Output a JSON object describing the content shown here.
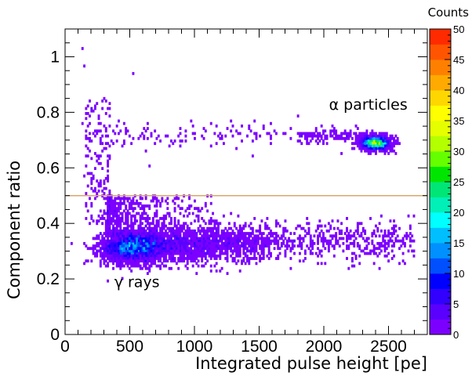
{
  "chart_data": {
    "type": "heatmap",
    "title": "",
    "xlabel": "Integrated pulse height [pe]",
    "ylabel": "Component ratio",
    "zlabel": "Counts",
    "xlim": [
      0,
      2800
    ],
    "ylim": [
      0,
      1.1
    ],
    "zlim": [
      0,
      50
    ],
    "x_ticks": [
      0,
      500,
      1000,
      1500,
      2000,
      2500
    ],
    "x_tick_labels": [
      "0",
      "500",
      "1000",
      "1500",
      "2000",
      "2500"
    ],
    "y_ticks": [
      0,
      0.2,
      0.4,
      0.6,
      0.8,
      1.0
    ],
    "y_tick_labels": [
      "0",
      "0.2",
      "0.4",
      "0.6",
      "0.8",
      "1"
    ],
    "z_ticks": [
      0,
      5,
      10,
      15,
      20,
      25,
      30,
      35,
      40,
      45,
      50
    ],
    "z_tick_labels": [
      "0",
      "5",
      "10",
      "15",
      "20",
      "25",
      "30",
      "35",
      "40",
      "45",
      "50"
    ],
    "cut_line": {
      "y": 0.5,
      "color": "#d9a66b"
    },
    "annotations": [
      {
        "text": "α particles",
        "x": 2040,
        "y": 0.81
      },
      {
        "text": "γ rays",
        "x": 380,
        "y": 0.17
      }
    ],
    "clusters": [
      {
        "name": "gamma-rays",
        "x_center": 500,
        "y_center": 0.315,
        "x_range": [
          300,
          2700
        ],
        "y_range": [
          0.24,
          0.5
        ],
        "peak_counts": 18
      },
      {
        "name": "alpha-particles",
        "x_center": 2400,
        "y_center": 0.69,
        "x_range": [
          2250,
          2600
        ],
        "y_range": [
          0.65,
          0.73
        ],
        "peak_counts": 35
      }
    ],
    "palette": [
      "#7c00ff",
      "#5a00ff",
      "#3200ff",
      "#0000ff",
      "#0050ff",
      "#0090ff",
      "#00bfff",
      "#00ffff",
      "#00f0b8",
      "#00e676",
      "#00e600",
      "#66ff00",
      "#b4ff00",
      "#e6ff00",
      "#ffff00",
      "#ffd700",
      "#ffaa00",
      "#ff8000",
      "#ff5500",
      "#ff2a00"
    ]
  }
}
